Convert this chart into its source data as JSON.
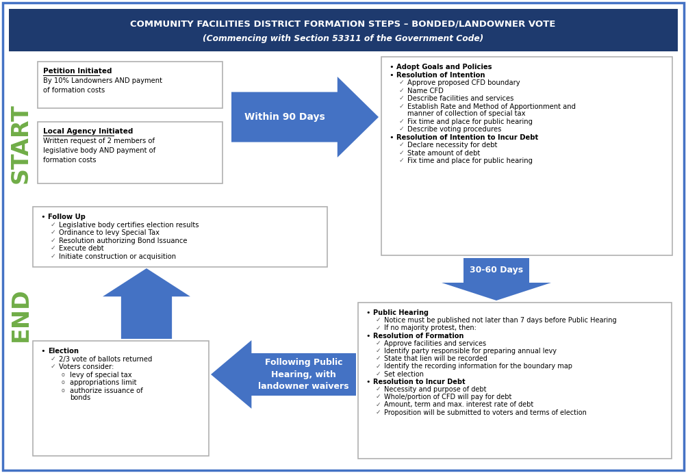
{
  "title_line1": "COMMUNITY FACILITIES DISTRICT FORMATION STEPS – BONDED/LANDOWNER VOTE",
  "title_line2": "(Commencing with Section 53311 of the Government Code)",
  "title_bg": "#1e3a6e",
  "title_text_color": "#ffffff",
  "outer_border_color": "#4472c4",
  "bg_color": "#ffffff",
  "start_color": "#70ad47",
  "end_color": "#70ad47",
  "arrow_color": "#4472c4",
  "petition_title": "Petition Initiated",
  "petition_body": "By 10% Landowners AND payment\nof formation costs",
  "local_title": "Local Agency Initiated",
  "local_body": "Written request of 2 members of\nlegislative body AND payment of\nformation costs",
  "arrow1_label": "Within 90 Days",
  "box2_content": [
    {
      "type": "bullet",
      "text": "Adopt Goals and Policies"
    },
    {
      "type": "bullet",
      "text": "Resolution of Intention"
    },
    {
      "type": "check",
      "text": "Approve proposed CFD boundary"
    },
    {
      "type": "check",
      "text": "Name CFD"
    },
    {
      "type": "check",
      "text": "Describe facilities and services"
    },
    {
      "type": "check2",
      "text": "Establish Rate and Method of Apportionment and",
      "text2": "manner of collection of special tax"
    },
    {
      "type": "check",
      "text": "Fix time and place for public hearing"
    },
    {
      "type": "check",
      "text": "Describe voting procedures"
    },
    {
      "type": "bullet",
      "text": "Resolution of Intention to Incur Debt"
    },
    {
      "type": "check",
      "text": "Declare necessity for debt"
    },
    {
      "type": "check",
      "text": "State amount of debt"
    },
    {
      "type": "check",
      "text": "Fix time and place for public hearing"
    }
  ],
  "arrow2_label": "30-60 Days",
  "box3_content": [
    {
      "type": "bullet",
      "text": "Public Hearing"
    },
    {
      "type": "check",
      "text": "Notice must be published not later than 7 days before Public Hearing"
    },
    {
      "type": "check",
      "text": "If no majority protest, then:"
    },
    {
      "type": "bullet",
      "text": "Resolution of Formation"
    },
    {
      "type": "check",
      "text": "Approve facilities and services"
    },
    {
      "type": "check",
      "text": "Identify party responsible for preparing annual levy"
    },
    {
      "type": "check",
      "text": "State that lien will be recorded"
    },
    {
      "type": "check",
      "text": "Identify the recording information for the boundary map"
    },
    {
      "type": "check",
      "text": "Set election"
    },
    {
      "type": "bullet",
      "text": "Resolution to Incur Debt"
    },
    {
      "type": "check",
      "text": "Necessity and purpose of debt"
    },
    {
      "type": "check",
      "text": "Whole/portion of CFD will pay for debt"
    },
    {
      "type": "check",
      "text": "Amount, term and max. interest rate of debt"
    },
    {
      "type": "check",
      "text": "Proposition will be submitted to voters and terms of election"
    }
  ],
  "arrow3_label": "Following Public\nHearing, with\nlandowner waivers",
  "box4_content": [
    {
      "type": "bullet",
      "text": "Election"
    },
    {
      "type": "check",
      "text": "2/3 vote of ballots returned"
    },
    {
      "type": "check",
      "text": "Voters consider:"
    },
    {
      "type": "circle",
      "text": "levy of special tax"
    },
    {
      "type": "circle",
      "text": "appropriations limit"
    },
    {
      "type": "circle2",
      "text": "authorize issuance of",
      "text2": "bonds"
    }
  ],
  "box5_content": [
    {
      "type": "bullet",
      "text": "Follow Up"
    },
    {
      "type": "check",
      "text": "Legislative body certifies election results"
    },
    {
      "type": "check",
      "text": "Ordinance to levy Special Tax"
    },
    {
      "type": "check",
      "text": "Resolution authorizing Bond Issuance"
    },
    {
      "type": "check",
      "text": "Execute debt"
    },
    {
      "type": "check",
      "text": "Initiate construction or acquisition"
    }
  ]
}
